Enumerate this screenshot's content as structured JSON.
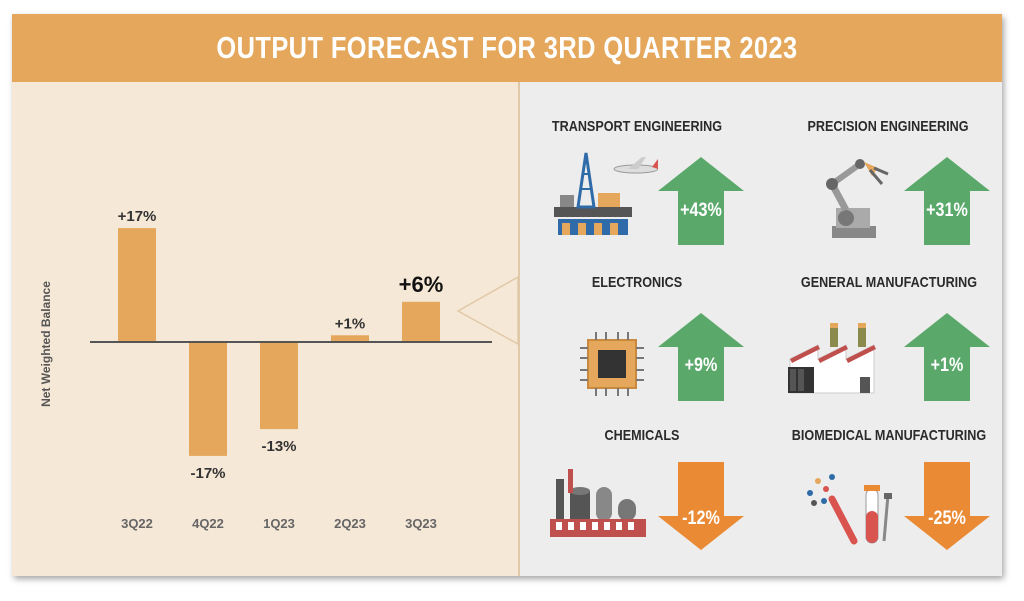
{
  "title": "OUTPUT FORECAST FOR 3RD QUARTER 2023",
  "colors": {
    "header": "#e4a75b",
    "bar": "#e4a75b",
    "up_arrow": "#5aa86a",
    "down_arrow": "#ea8a34",
    "left_bg": "#f6e8d6",
    "right_bg": "#ecedec"
  },
  "chart_data": {
    "type": "bar",
    "ylabel": "Net Weighted Balance",
    "categories": [
      "3Q22",
      "4Q22",
      "1Q23",
      "2Q23",
      "3Q23"
    ],
    "values": [
      17,
      -17,
      -13,
      1,
      6
    ],
    "value_labels": [
      "+17%",
      "-17%",
      "-13%",
      "+1%",
      "+6%"
    ],
    "highlight_index": 4
  },
  "sectors": [
    {
      "name": "TRANSPORT ENGINEERING",
      "change": "+43%",
      "direction": "up",
      "icon": "oil-rig-airplane-icon"
    },
    {
      "name": "PRECISION ENGINEERING",
      "change": "+31%",
      "direction": "up",
      "icon": "robotic-arm-icon"
    },
    {
      "name": "ELECTRONICS",
      "change": "+9%",
      "direction": "up",
      "icon": "microchip-icon"
    },
    {
      "name": "GENERAL MANUFACTURING",
      "change": "+1%",
      "direction": "up",
      "icon": "factory-icon"
    },
    {
      "name": "CHEMICALS",
      "change": "-12%",
      "direction": "down",
      "icon": "chemical-plant-icon"
    },
    {
      "name": "BIOMEDICAL MANUFACTURING",
      "change": "-25%",
      "direction": "down",
      "icon": "lab-equipment-icon"
    }
  ]
}
